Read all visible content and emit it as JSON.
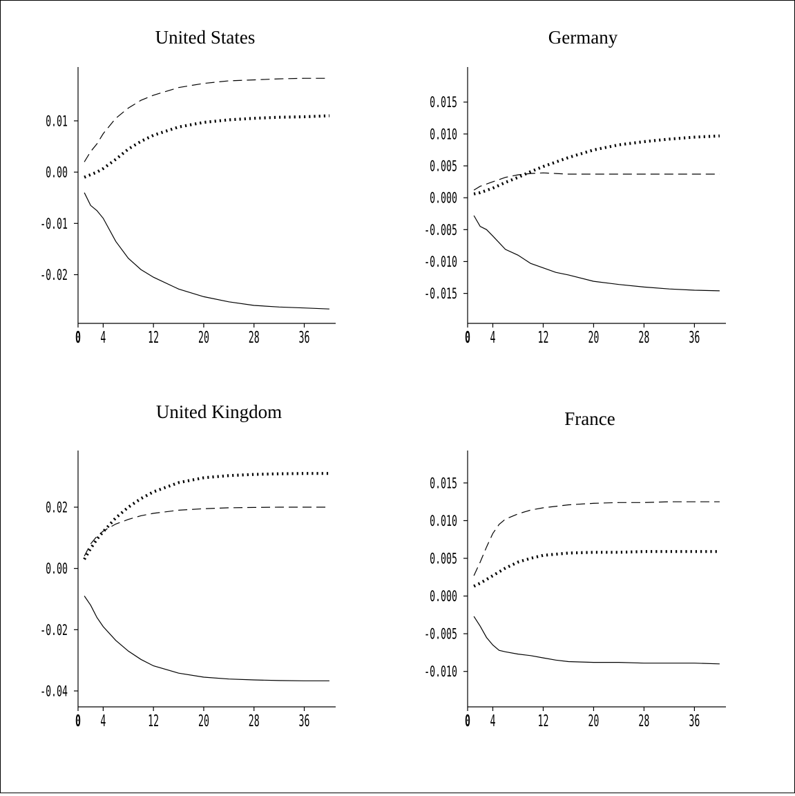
{
  "chart_data": [
    {
      "type": "line",
      "title": "United States",
      "xlabel": "",
      "ylabel": "",
      "x_ticks": [
        "0",
        "4",
        "12",
        "20",
        "28",
        "36"
      ],
      "x_tick_values": [
        0,
        4,
        12,
        20,
        28,
        36
      ],
      "xlim": [
        0,
        41
      ],
      "y_ticks": [
        "0.01",
        "0.00",
        "-0.01",
        "-0.02"
      ],
      "y_tick_values": [
        0.01,
        0.0,
        -0.01,
        -0.02
      ],
      "ylim": [
        -0.0295,
        0.0205
      ],
      "grid": false,
      "series": [
        {
          "style": "dashed",
          "x": [
            1,
            2,
            3,
            4,
            6,
            8,
            10,
            12,
            16,
            20,
            24,
            28,
            32,
            36,
            40
          ],
          "values": [
            0.002,
            0.004,
            0.0055,
            0.0075,
            0.0105,
            0.0125,
            0.014,
            0.015,
            0.0165,
            0.0173,
            0.0178,
            0.018,
            0.0182,
            0.0183,
            0.0183
          ]
        },
        {
          "style": "dotted",
          "x": [
            1,
            2,
            3,
            4,
            6,
            8,
            10,
            12,
            16,
            20,
            24,
            28,
            32,
            36,
            40
          ],
          "values": [
            -0.001,
            -0.0005,
            0.0,
            0.0007,
            0.0025,
            0.0045,
            0.006,
            0.0072,
            0.0088,
            0.0097,
            0.0102,
            0.0105,
            0.0107,
            0.0108,
            0.011
          ]
        },
        {
          "style": "solid",
          "x": [
            1,
            2,
            3,
            4,
            6,
            8,
            10,
            12,
            16,
            20,
            24,
            28,
            32,
            36,
            40
          ],
          "values": [
            -0.004,
            -0.0065,
            -0.0075,
            -0.009,
            -0.0135,
            -0.0168,
            -0.019,
            -0.0205,
            -0.0228,
            -0.0243,
            -0.0253,
            -0.026,
            -0.0263,
            -0.0265,
            -0.0267
          ]
        }
      ]
    },
    {
      "type": "line",
      "title": "Germany",
      "xlabel": "",
      "ylabel": "",
      "x_ticks": [
        "0",
        "4",
        "12",
        "20",
        "28",
        "36"
      ],
      "x_tick_values": [
        0,
        4,
        12,
        20,
        28,
        36
      ],
      "xlim": [
        0,
        41
      ],
      "y_ticks": [
        "0.015",
        "0.010",
        "0.005",
        "0.000",
        "-0.005",
        "-0.010",
        "-0.015"
      ],
      "y_tick_values": [
        0.015,
        0.01,
        0.005,
        0.0,
        -0.005,
        -0.01,
        -0.015
      ],
      "ylim": [
        -0.0197,
        0.0205
      ],
      "grid": false,
      "series": [
        {
          "style": "dashed",
          "x": [
            1,
            2,
            4,
            6,
            8,
            10,
            12,
            14,
            16,
            20,
            24,
            28,
            32,
            36,
            40
          ],
          "values": [
            0.0012,
            0.0018,
            0.0025,
            0.0032,
            0.0036,
            0.0038,
            0.0039,
            0.0038,
            0.0037,
            0.0037,
            0.0037,
            0.0037,
            0.0037,
            0.0037,
            0.0037
          ]
        },
        {
          "style": "dotted",
          "x": [
            1,
            2,
            4,
            6,
            8,
            10,
            12,
            16,
            20,
            24,
            28,
            32,
            36,
            40
          ],
          "values": [
            0.0006,
            0.0008,
            0.0015,
            0.0024,
            0.0032,
            0.0041,
            0.0049,
            0.0063,
            0.0075,
            0.0083,
            0.0088,
            0.0092,
            0.0095,
            0.0097
          ]
        },
        {
          "style": "solid",
          "x": [
            1,
            2,
            3,
            4,
            6,
            8,
            10,
            12,
            14,
            16,
            20,
            24,
            28,
            32,
            36,
            40
          ],
          "values": [
            -0.0028,
            -0.0045,
            -0.005,
            -0.006,
            -0.0081,
            -0.009,
            -0.0103,
            -0.011,
            -0.0117,
            -0.0121,
            -0.0131,
            -0.0136,
            -0.014,
            -0.0143,
            -0.0145,
            -0.0146
          ]
        }
      ]
    },
    {
      "type": "line",
      "title": "United Kingdom",
      "xlabel": "",
      "ylabel": "",
      "x_ticks": [
        "0",
        "4",
        "12",
        "20",
        "28",
        "36"
      ],
      "x_tick_values": [
        0,
        4,
        12,
        20,
        28,
        36
      ],
      "xlim": [
        0,
        41
      ],
      "y_ticks": [
        "0.02",
        "0.00",
        "-0.02",
        "-0.04"
      ],
      "y_tick_values": [
        0.02,
        0.0,
        -0.02,
        -0.04
      ],
      "ylim": [
        -0.0452,
        0.0385
      ],
      "grid": false,
      "series": [
        {
          "style": "dashed",
          "x": [
            1,
            2,
            3,
            4,
            6,
            8,
            10,
            12,
            16,
            20,
            24,
            28,
            32,
            36,
            40
          ],
          "values": [
            0.004,
            0.008,
            0.0105,
            0.0122,
            0.0145,
            0.016,
            0.0172,
            0.018,
            0.019,
            0.0195,
            0.0198,
            0.0199,
            0.02,
            0.02,
            0.02
          ]
        },
        {
          "style": "dotted",
          "x": [
            1,
            2,
            3,
            4,
            6,
            8,
            10,
            12,
            16,
            20,
            24,
            28,
            32,
            36,
            40
          ],
          "values": [
            0.003,
            0.0065,
            0.0095,
            0.012,
            0.0165,
            0.02,
            0.0228,
            0.025,
            0.028,
            0.0296,
            0.0303,
            0.0307,
            0.0309,
            0.031,
            0.031
          ]
        },
        {
          "style": "solid",
          "x": [
            1,
            2,
            3,
            4,
            6,
            8,
            10,
            12,
            16,
            20,
            24,
            28,
            32,
            36,
            40
          ],
          "values": [
            -0.009,
            -0.012,
            -0.016,
            -0.019,
            -0.0235,
            -0.027,
            -0.0297,
            -0.0318,
            -0.0342,
            -0.0355,
            -0.0361,
            -0.0364,
            -0.0366,
            -0.0367,
            -0.0367
          ]
        }
      ]
    },
    {
      "type": "line",
      "title": "France",
      "xlabel": "",
      "ylabel": "",
      "x_ticks": [
        "0",
        "4",
        "12",
        "20",
        "28",
        "36"
      ],
      "x_tick_values": [
        0,
        4,
        12,
        20,
        28,
        36
      ],
      "xlim": [
        0,
        41
      ],
      "y_ticks": [
        "0.015",
        "0.010",
        "0.005",
        "0.000",
        "-0.005",
        "-0.010"
      ],
      "y_tick_values": [
        0.015,
        0.01,
        0.005,
        0.0,
        -0.005,
        -0.01
      ],
      "ylim": [
        -0.0147,
        0.0193
      ],
      "grid": false,
      "series": [
        {
          "style": "dashed",
          "x": [
            1,
            2,
            3,
            4,
            5,
            6,
            8,
            10,
            12,
            16,
            20,
            24,
            28,
            32,
            36,
            40
          ],
          "values": [
            0.0027,
            0.0045,
            0.0065,
            0.0083,
            0.0095,
            0.0102,
            0.0109,
            0.0114,
            0.0117,
            0.0121,
            0.0123,
            0.0124,
            0.0124,
            0.0125,
            0.0125,
            0.0125
          ]
        },
        {
          "style": "dotted",
          "x": [
            1,
            2,
            3,
            4,
            6,
            8,
            10,
            12,
            16,
            20,
            24,
            28,
            32,
            36,
            40
          ],
          "values": [
            0.0013,
            0.0017,
            0.0022,
            0.0027,
            0.0037,
            0.0045,
            0.005,
            0.0054,
            0.0057,
            0.0058,
            0.0058,
            0.0059,
            0.0059,
            0.0059,
            0.0059
          ]
        },
        {
          "style": "solid",
          "x": [
            1,
            2,
            3,
            4,
            5,
            6,
            8,
            10,
            12,
            14,
            16,
            20,
            24,
            28,
            32,
            36,
            40
          ],
          "values": [
            -0.0027,
            -0.004,
            -0.0055,
            -0.0065,
            -0.0072,
            -0.0074,
            -0.0077,
            -0.0079,
            -0.0082,
            -0.0085,
            -0.0087,
            -0.0088,
            -0.0088,
            -0.0089,
            -0.0089,
            -0.0089,
            -0.009
          ]
        }
      ]
    }
  ]
}
